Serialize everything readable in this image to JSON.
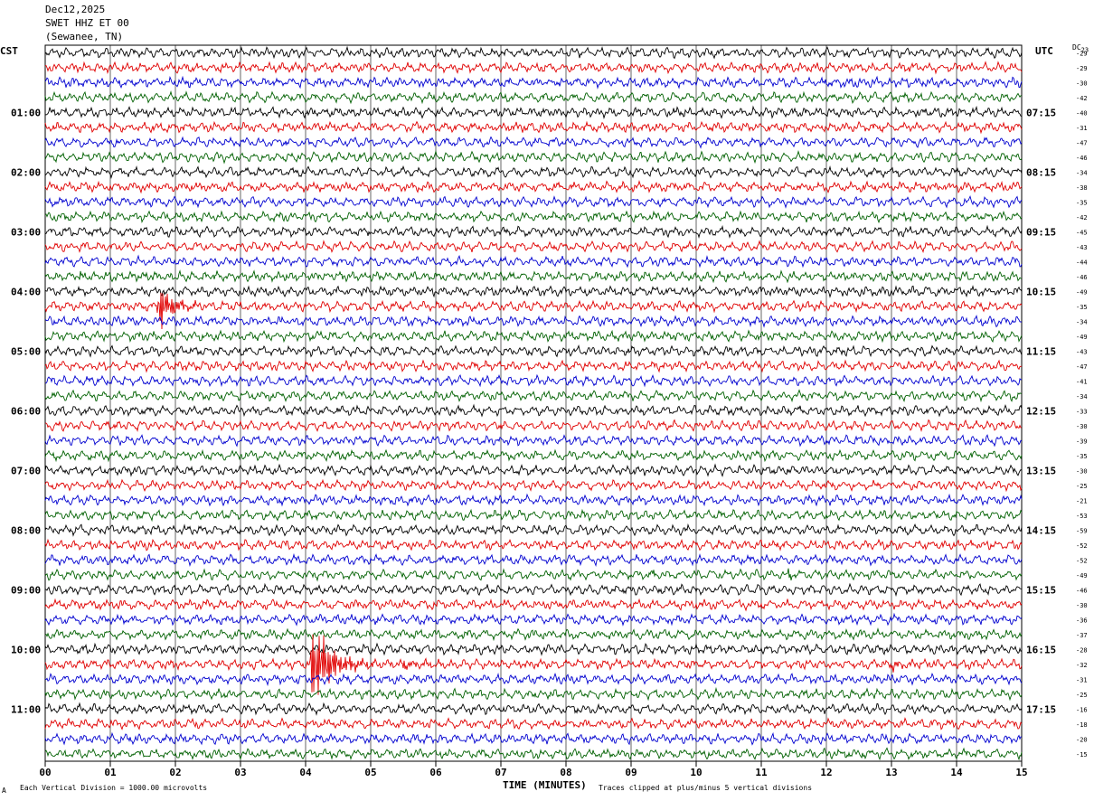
{
  "header": {
    "date": "Dec12,2025",
    "station": "SWET HHZ ET 00",
    "location": "(Sewanee, TN)"
  },
  "left_zone": "CST",
  "right_zone": "UTC",
  "dc_label": "DC",
  "dc_sub": "23",
  "footer": {
    "scale_note": "Each Vertical Division = 1000.00 microvolts",
    "clip_note": "Traces clipped at plus/minus 5 vertical divisions",
    "corner_mark": "A"
  },
  "colors": {
    "trace_cycle": [
      "#000000",
      "#e00000",
      "#0000d0",
      "#006000"
    ],
    "grid": "#000000"
  },
  "chart_data": {
    "type": "line",
    "title": "",
    "xlabel": "TIME (MINUTES)",
    "ylabel": "",
    "xlim": [
      0,
      15
    ],
    "x_ticks": [
      "00",
      "01",
      "02",
      "03",
      "04",
      "05",
      "06",
      "07",
      "08",
      "09",
      "10",
      "11",
      "12",
      "13",
      "14",
      "15"
    ],
    "left_hour_labels": [
      {
        "row": 4,
        "label": "01:00"
      },
      {
        "row": 8,
        "label": "02:00"
      },
      {
        "row": 12,
        "label": "03:00"
      },
      {
        "row": 16,
        "label": "04:00"
      },
      {
        "row": 20,
        "label": "05:00"
      },
      {
        "row": 24,
        "label": "06:00"
      },
      {
        "row": 28,
        "label": "07:00"
      },
      {
        "row": 32,
        "label": "08:00"
      },
      {
        "row": 36,
        "label": "09:00"
      },
      {
        "row": 40,
        "label": "10:00"
      },
      {
        "row": 44,
        "label": "11:00"
      }
    ],
    "right_hour_labels": [
      {
        "row": 4,
        "label": "07:15"
      },
      {
        "row": 8,
        "label": "08:15"
      },
      {
        "row": 12,
        "label": "09:15"
      },
      {
        "row": 16,
        "label": "10:15"
      },
      {
        "row": 20,
        "label": "11:15"
      },
      {
        "row": 24,
        "label": "12:15"
      },
      {
        "row": 28,
        "label": "13:15"
      },
      {
        "row": 32,
        "label": "14:15"
      },
      {
        "row": 36,
        "label": "15:15"
      },
      {
        "row": 40,
        "label": "16:15"
      },
      {
        "row": 44,
        "label": "17:15"
      }
    ],
    "dc_offsets": [
      "-29",
      "-29",
      "-30",
      "-42",
      "-40",
      "-31",
      "-47",
      "-46",
      "-34",
      "-38",
      "-35",
      "-42",
      "-45",
      "-43",
      "-44",
      "-46",
      "-49",
      "-35",
      "-34",
      "-49",
      "-43",
      "-47",
      "-41",
      "-34",
      "-33",
      "-30",
      "-39",
      "-35",
      "-30",
      "-25",
      "-21",
      "-53",
      "-59",
      "-52",
      "-52",
      "-49",
      "-46",
      "-30",
      "-36",
      "-37",
      "-28",
      "-32",
      "-31",
      "-25",
      "-16",
      "-18",
      "-20",
      "-15"
    ],
    "events": [
      {
        "row": 17,
        "minute": 1.75,
        "amplitude": 3.2,
        "duration_min": 0.7
      },
      {
        "row": 41,
        "minute": 4.1,
        "amplitude": 6.0,
        "duration_min": 1.0
      },
      {
        "row": 41,
        "minute": 5.5,
        "amplitude": 0.8,
        "duration_min": 0.5
      },
      {
        "row": 41,
        "minute": 13.0,
        "amplitude": 0.6,
        "duration_min": 0.6
      },
      {
        "row": 35,
        "minute": 9.3,
        "amplitude": 0.7,
        "duration_min": 0.5
      },
      {
        "row": 35,
        "minute": 11.4,
        "amplitude": 0.7,
        "duration_min": 0.4
      },
      {
        "row": 15,
        "minute": 0.5,
        "amplitude": 0.5,
        "duration_min": 0.3
      }
    ]
  }
}
